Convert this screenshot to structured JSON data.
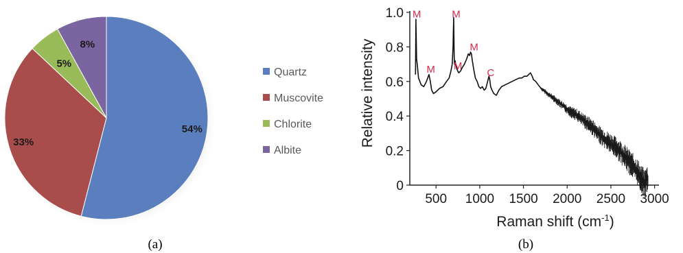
{
  "chart_data": [
    {
      "type": "pie",
      "caption": "(a)",
      "categories": [
        "Quartz",
        "Muscovite",
        "Chlorite",
        "Albite"
      ],
      "values": [
        54,
        33,
        5,
        8
      ],
      "labels": [
        "54%",
        "33%",
        "5%",
        "8%"
      ],
      "colors": [
        "#5b7fbe",
        "#a84d4b",
        "#9abb59",
        "#7b65a0"
      ],
      "legend_position": "right"
    },
    {
      "type": "line",
      "caption": "(b)",
      "xlabel_main": "Raman shift (cm",
      "xlabel_sup": "-1",
      "xlabel_end": ")",
      "ylabel": "Relative intensity",
      "xlim": [
        200,
        3050
      ],
      "ylim": [
        0,
        1.0
      ],
      "xticks": [
        500,
        1000,
        1500,
        2000,
        2500,
        3000
      ],
      "xtick_labels": [
        "500",
        "1000",
        "1500",
        "2000",
        "2500",
        "3000"
      ],
      "yticks": [
        0,
        0.2,
        0.4,
        0.6,
        0.8,
        1.0
      ],
      "ytick_labels": [
        "0",
        "0.2",
        "0.4",
        "0.6",
        "0.8",
        "1.0"
      ],
      "grid": false,
      "series": [
        {
          "color": "#111111",
          "x": [
            265,
            270,
            278,
            285,
            300,
            330,
            360,
            390,
            405,
            420,
            435,
            450,
            470,
            500,
            540,
            580,
            620,
            650,
            670,
            685,
            695,
            702,
            708,
            712,
            718,
            725,
            735,
            748,
            760,
            780,
            800,
            825,
            850,
            870,
            885,
            895,
            905,
            915,
            925,
            935,
            950,
            970,
            990,
            1010,
            1030,
            1050,
            1070,
            1090,
            1105,
            1115,
            1125,
            1140,
            1160,
            1190,
            1220,
            1250,
            1290,
            1330,
            1370,
            1410,
            1450,
            1480,
            1510,
            1540,
            1560,
            1580,
            1600,
            1615,
            1640,
            1670,
            1700,
            1750,
            1800,
            1850,
            1900,
            1950,
            2000,
            2050,
            2100,
            2150,
            2200,
            2250,
            2300,
            2350,
            2400,
            2450,
            2500,
            2550,
            2600,
            2650,
            2700,
            2750,
            2800,
            2830,
            2850,
            2870,
            2890,
            2905,
            2915,
            2925
          ],
          "y": [
            0.64,
            0.96,
            0.73,
            0.7,
            0.62,
            0.58,
            0.57,
            0.6,
            0.62,
            0.64,
            0.6,
            0.55,
            0.53,
            0.54,
            0.56,
            0.57,
            0.6,
            0.62,
            0.66,
            0.7,
            0.8,
            0.97,
            0.74,
            0.7,
            0.72,
            0.7,
            0.68,
            0.66,
            0.65,
            0.66,
            0.68,
            0.7,
            0.73,
            0.76,
            0.75,
            0.77,
            0.76,
            0.72,
            0.69,
            0.66,
            0.62,
            0.6,
            0.57,
            0.56,
            0.57,
            0.55,
            0.56,
            0.6,
            0.63,
            0.61,
            0.57,
            0.55,
            0.53,
            0.52,
            0.55,
            0.57,
            0.58,
            0.59,
            0.6,
            0.61,
            0.62,
            0.62,
            0.63,
            0.63,
            0.64,
            0.65,
            0.63,
            0.61,
            0.6,
            0.58,
            0.56,
            0.54,
            0.52,
            0.5,
            0.48,
            0.46,
            0.44,
            0.42,
            0.41,
            0.39,
            0.37,
            0.35,
            0.33,
            0.3,
            0.28,
            0.26,
            0.24,
            0.22,
            0.2,
            0.17,
            0.14,
            0.11,
            0.08,
            0.05,
            0.03,
            0.02,
            0.01,
            0.02,
            0.04,
            0.03
          ]
        }
      ],
      "annotations": [
        {
          "text": "M",
          "x": 280,
          "y": 0.97
        },
        {
          "text": "M",
          "x": 440,
          "y": 0.65
        },
        {
          "text": "M",
          "x": 730,
          "y": 0.97
        },
        {
          "text": "M",
          "x": 750,
          "y": 0.67
        },
        {
          "text": "M",
          "x": 935,
          "y": 0.78
        },
        {
          "text": "C",
          "x": 1125,
          "y": 0.63
        }
      ]
    }
  ]
}
